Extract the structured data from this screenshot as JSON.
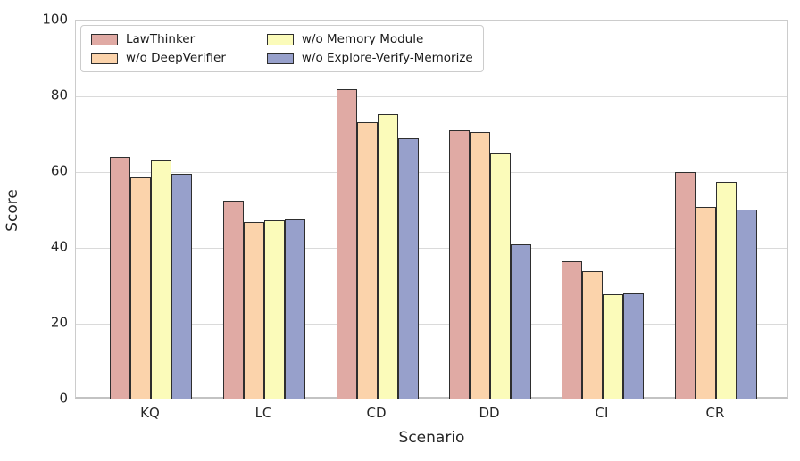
{
  "chart_data": {
    "type": "bar",
    "title": "",
    "xlabel": "Scenario",
    "ylabel": "Score",
    "ylim": [
      0,
      100
    ],
    "yticks": [
      0,
      20,
      40,
      60,
      80,
      100
    ],
    "grid": true,
    "legend_position": "upper left",
    "bar_edge_color": "#2e2e2e",
    "categories": [
      "KQ",
      "LC",
      "CD",
      "DD",
      "CI",
      "CR"
    ],
    "series": [
      {
        "name": "LawThinker",
        "color": "#e0aaa4",
        "values": [
          64.1,
          52.5,
          81.8,
          71.1,
          36.5,
          60.0
        ]
      },
      {
        "name": "w/o DeepVerifier",
        "color": "#fbd3ab",
        "values": [
          58.5,
          46.9,
          73.2,
          70.7,
          33.9,
          50.9
        ]
      },
      {
        "name": "w/o Memory Module",
        "color": "#fbfbba",
        "values": [
          63.2,
          47.3,
          75.4,
          64.9,
          27.8,
          57.4
        ]
      },
      {
        "name": "w/o Explore-Verify-Memorize",
        "color": "#97a0cb",
        "values": [
          59.6,
          47.5,
          69.0,
          41.0,
          28.1,
          50.1
        ]
      }
    ]
  }
}
